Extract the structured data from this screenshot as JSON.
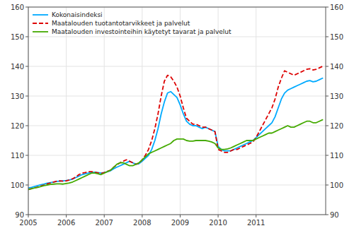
{
  "chart_data": {
    "type": "line",
    "x": [
      2005,
      2005.0833333333333,
      2005.1666666666667,
      2005.25,
      2005.3333333333333,
      2005.4166666666667,
      2005.5,
      2005.5833333333333,
      2005.6666666666667,
      2005.75,
      2005.8333333333333,
      2005.9166666666667,
      2006,
      2006.0833333333333,
      2006.1666666666667,
      2006.25,
      2006.3333333333333,
      2006.4166666666667,
      2006.5,
      2006.5833333333333,
      2006.6666666666667,
      2006.75,
      2006.8333333333333,
      2006.9166666666667,
      2007,
      2007.0833333333333,
      2007.1666666666667,
      2007.25,
      2007.3333333333333,
      2007.4166666666667,
      2007.5,
      2007.5833333333333,
      2007.6666666666667,
      2007.75,
      2007.8333333333333,
      2007.9166666666667,
      2008,
      2008.0833333333333,
      2008.1666666666667,
      2008.25,
      2008.3333333333333,
      2008.4166666666667,
      2008.5,
      2008.5833333333333,
      2008.6666666666667,
      2008.75,
      2008.8333333333333,
      2008.9166666666667,
      2009,
      2009.0833333333333,
      2009.1666666666667,
      2009.25,
      2009.3333333333333,
      2009.4166666666667,
      2009.5,
      2009.5833333333333,
      2009.6666666666667,
      2009.75,
      2009.8333333333333,
      2009.9166666666667,
      2010,
      2010.0833333333333,
      2010.1666666666667,
      2010.25,
      2010.3333333333333,
      2010.4166666666667,
      2010.5,
      2010.5833333333333,
      2010.6666666666667,
      2010.75,
      2010.8333333333333,
      2010.9166666666667,
      2011,
      2011.0833333333333,
      2011.1666666666667,
      2011.25,
      2011.3333333333333,
      2011.4166666666667,
      2011.5,
      2011.5833333333333,
      2011.6666666666667,
      2011.75,
      2011.8333333333333,
      2011.9166666666667,
      2012,
      2012.0833333333333,
      2012.1666666666667,
      2012.25,
      2012.3333333333333,
      2012.4166666666667,
      2012.5,
      2012.5833333333333,
      2012.6666666666667,
      2012.75
    ],
    "xlim": [
      2005,
      2012.8333333333333
    ],
    "xticks": [
      2005,
      2006,
      2007,
      2008,
      2009,
      2010,
      2011
    ],
    "ylim": [
      90,
      160
    ],
    "yticks": [
      90,
      100,
      110,
      120,
      130,
      140,
      150,
      160
    ],
    "y2lim": [
      90,
      160
    ],
    "y2ticks": [
      90,
      100,
      110,
      120,
      130,
      140,
      150,
      160
    ],
    "grid": true,
    "legend": "upper left",
    "series": [
      {
        "name": "Kokonaisindeksi",
        "color": "#00aaff",
        "line_style": "solid",
        "values": [
          99.0,
          99.2,
          99.5,
          99.8,
          100.1,
          100.3,
          100.6,
          100.8,
          101.0,
          101.2,
          101.3,
          101.4,
          101.5,
          101.7,
          102.0,
          102.5,
          103.0,
          103.5,
          103.8,
          104.0,
          104.2,
          104.3,
          104.2,
          104.0,
          104.2,
          104.5,
          104.8,
          105.5,
          106.0,
          106.5,
          107.0,
          107.5,
          108.0,
          107.5,
          107.0,
          107.2,
          108.0,
          109.0,
          110.0,
          112.0,
          115.0,
          119.0,
          124.0,
          128.0,
          131.0,
          131.5,
          130.5,
          129.5,
          127.0,
          124.0,
          121.5,
          120.5,
          120.0,
          120.0,
          119.5,
          119.0,
          119.5,
          119.0,
          118.5,
          118.0,
          113.0,
          112.0,
          111.5,
          111.5,
          111.5,
          112.0,
          112.5,
          113.0,
          113.5,
          114.0,
          114.5,
          115.0,
          116.0,
          117.0,
          118.0,
          119.0,
          120.0,
          121.0,
          123.0,
          126.0,
          129.0,
          131.0,
          132.0,
          132.5,
          133.0,
          133.5,
          134.0,
          134.5,
          135.0,
          135.2,
          134.8,
          135.0,
          135.5,
          136.0
        ]
      },
      {
        "name": "Maatalouden tuotantotarvikkeet ja palvelut",
        "color": "#dd0000",
        "line_style": "dashed",
        "values": [
          98.5,
          98.8,
          99.0,
          99.3,
          99.7,
          100.0,
          100.4,
          100.7,
          101.0,
          101.3,
          101.4,
          101.3,
          101.4,
          101.7,
          102.1,
          102.7,
          103.5,
          104.0,
          104.2,
          104.5,
          104.5,
          104.3,
          104.1,
          103.9,
          104.2,
          104.6,
          105.0,
          106.0,
          106.8,
          107.5,
          108.0,
          108.5,
          108.0,
          107.5,
          107.0,
          107.3,
          108.5,
          110.0,
          112.0,
          115.0,
          119.0,
          124.0,
          130.0,
          135.0,
          137.0,
          136.5,
          135.0,
          133.0,
          130.0,
          126.0,
          122.5,
          121.5,
          120.5,
          120.5,
          120.0,
          119.5,
          119.5,
          119.0,
          118.5,
          118.0,
          112.0,
          111.5,
          111.0,
          111.0,
          111.5,
          112.0,
          112.0,
          112.5,
          113.0,
          113.5,
          114.0,
          114.5,
          116.0,
          118.0,
          120.0,
          122.0,
          124.0,
          126.0,
          129.0,
          133.0,
          136.0,
          138.5,
          138.0,
          137.5,
          137.0,
          137.5,
          138.0,
          138.5,
          139.0,
          139.2,
          138.8,
          139.0,
          139.5,
          140.0
        ]
      },
      {
        "name": "Maatalouden investointeihin käytetyt tavarat ja palvelut",
        "color": "#44aa00",
        "line_style": "solid",
        "values": [
          98.5,
          98.7,
          99.0,
          99.2,
          99.5,
          99.8,
          100.0,
          100.2,
          100.3,
          100.4,
          100.4,
          100.3,
          100.5,
          100.7,
          101.0,
          101.5,
          102.0,
          102.5,
          103.0,
          103.5,
          104.0,
          104.0,
          103.8,
          103.5,
          104.0,
          104.5,
          105.0,
          106.0,
          107.0,
          107.5,
          107.5,
          107.0,
          106.5,
          106.5,
          107.0,
          107.5,
          108.5,
          109.5,
          110.5,
          111.0,
          111.5,
          112.0,
          112.5,
          113.0,
          113.5,
          114.0,
          115.0,
          115.5,
          115.5,
          115.5,
          115.0,
          114.8,
          114.8,
          115.0,
          115.0,
          115.0,
          115.0,
          114.8,
          114.5,
          114.0,
          112.5,
          112.0,
          112.0,
          112.2,
          112.5,
          113.0,
          113.5,
          114.0,
          114.5,
          115.0,
          115.0,
          115.0,
          115.5,
          116.0,
          116.5,
          117.0,
          117.5,
          117.5,
          118.0,
          118.5,
          119.0,
          119.5,
          120.0,
          119.5,
          119.5,
          120.0,
          120.5,
          121.0,
          121.5,
          121.5,
          121.0,
          121.0,
          121.5,
          122.0
        ]
      }
    ]
  }
}
